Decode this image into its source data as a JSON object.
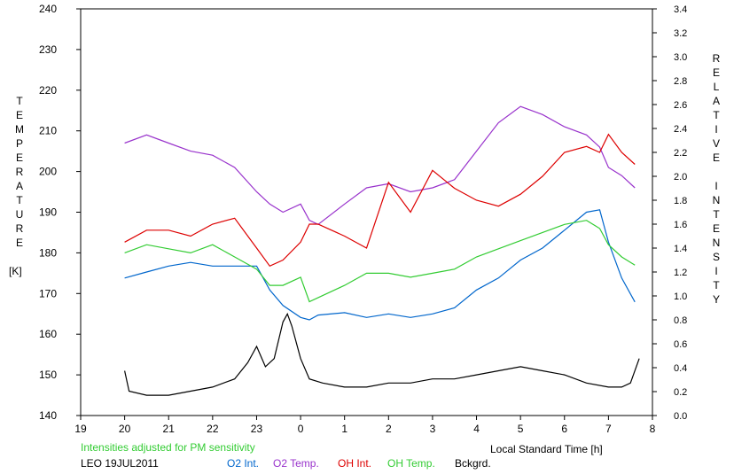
{
  "chart_data": {
    "type": "line",
    "title": "",
    "xlabel": "Local Standard Time [h]",
    "ylabel_left_letters": [
      "T",
      "E",
      "M",
      "P",
      "E",
      "R",
      "A",
      "T",
      "U",
      "R",
      "E"
    ],
    "ylabel_left_unit": "[K]",
    "ylabel_right_letters": [
      "R",
      "E",
      "L",
      "A",
      "T",
      "I",
      "V",
      "E",
      "",
      "I",
      "N",
      "T",
      "E",
      "N",
      "S",
      "I",
      "T",
      "Y"
    ],
    "x_ticks": [
      "19",
      "20",
      "21",
      "22",
      "23",
      "0",
      "1",
      "2",
      "3",
      "4",
      "5",
      "6",
      "7",
      "8"
    ],
    "x_range_hours_since_19": [
      0,
      13
    ],
    "y_left_ticks": [
      "140",
      "150",
      "160",
      "170",
      "180",
      "190",
      "200",
      "210",
      "220",
      "230",
      "240"
    ],
    "y_left_range": [
      140,
      240
    ],
    "y_right_ticks": [
      "0.0",
      "0.2",
      "0.4",
      "0.6",
      "0.8",
      "1.0",
      "1.2",
      "1.4",
      "1.6",
      "1.8",
      "2.0",
      "2.2",
      "2.4",
      "2.6",
      "2.8",
      "3.0",
      "3.2",
      "3.4"
    ],
    "y_right_range": [
      0,
      3.4
    ],
    "note": "Intensities adjusted for PM sensitivity",
    "station": "LEO 19JUL2011",
    "grid": false,
    "legend_position": "bottom",
    "series": [
      {
        "name": "O2 Int.",
        "axis": "right",
        "color": "#0066cc",
        "x": [
          20.0,
          20.5,
          21.0,
          21.5,
          22.0,
          22.5,
          23.0,
          23.3,
          23.6,
          24.0,
          24.2,
          24.4,
          25.0,
          25.5,
          26.0,
          26.5,
          27.0,
          27.5,
          28.0,
          28.5,
          29.0,
          29.5,
          30.0,
          30.5,
          30.8,
          31.0,
          31.3,
          31.6
        ],
        "values": [
          1.15,
          1.2,
          1.25,
          1.28,
          1.25,
          1.25,
          1.25,
          1.05,
          0.92,
          0.82,
          0.8,
          0.84,
          0.86,
          0.82,
          0.85,
          0.82,
          0.85,
          0.9,
          1.05,
          1.15,
          1.3,
          1.4,
          1.55,
          1.7,
          1.72,
          1.45,
          1.15,
          0.95
        ]
      },
      {
        "name": "O2 Temp.",
        "axis": "left",
        "color": "#9933cc",
        "x": [
          20.0,
          20.5,
          21.0,
          21.5,
          22.0,
          22.5,
          23.0,
          23.3,
          23.6,
          24.0,
          24.2,
          24.4,
          25.0,
          25.5,
          26.0,
          26.5,
          27.0,
          27.5,
          28.0,
          28.5,
          29.0,
          29.5,
          30.0,
          30.5,
          30.8,
          31.0,
          31.3,
          31.6
        ],
        "values": [
          207,
          209,
          207,
          205,
          204,
          201,
          195,
          192,
          190,
          192,
          188,
          187,
          192,
          196,
          197,
          195,
          196,
          198,
          205,
          212,
          216,
          214,
          211,
          209,
          206,
          201,
          199,
          196
        ]
      },
      {
        "name": "OH Int.",
        "axis": "right",
        "color": "#dd0000",
        "x": [
          20.0,
          20.5,
          21.0,
          21.5,
          22.0,
          22.5,
          23.0,
          23.3,
          23.6,
          24.0,
          24.2,
          24.4,
          25.0,
          25.5,
          26.0,
          26.5,
          27.0,
          27.5,
          28.0,
          28.5,
          29.0,
          29.5,
          30.0,
          30.5,
          30.8,
          31.0,
          31.3,
          31.6
        ],
        "values": [
          1.45,
          1.55,
          1.55,
          1.5,
          1.6,
          1.65,
          1.4,
          1.25,
          1.3,
          1.45,
          1.6,
          1.6,
          1.5,
          1.4,
          1.95,
          1.7,
          2.05,
          1.9,
          1.8,
          1.75,
          1.85,
          2.0,
          2.2,
          2.25,
          2.2,
          2.35,
          2.2,
          2.1
        ]
      },
      {
        "name": "OH Temp.",
        "axis": "left",
        "color": "#33cc33",
        "x": [
          20.0,
          20.5,
          21.0,
          21.5,
          22.0,
          22.5,
          23.0,
          23.3,
          23.6,
          24.0,
          24.2,
          24.4,
          25.0,
          25.5,
          26.0,
          26.5,
          27.0,
          27.5,
          28.0,
          28.5,
          29.0,
          29.5,
          30.0,
          30.5,
          30.8,
          31.0,
          31.3,
          31.6
        ],
        "values": [
          180,
          182,
          181,
          180,
          182,
          179,
          176,
          172,
          172,
          174,
          168,
          169,
          172,
          175,
          175,
          174,
          175,
          176,
          179,
          181,
          183,
          185,
          187,
          188,
          186,
          182,
          179,
          177
        ]
      },
      {
        "name": "Bckgrd.",
        "axis": "left",
        "color": "#000000",
        "x": [
          20.0,
          20.1,
          20.5,
          21.0,
          21.5,
          22.0,
          22.5,
          22.8,
          23.0,
          23.2,
          23.4,
          23.6,
          23.7,
          23.8,
          24.0,
          24.2,
          24.5,
          25.0,
          25.5,
          26.0,
          26.5,
          27.0,
          27.5,
          28.0,
          28.5,
          29.0,
          29.5,
          30.0,
          30.5,
          31.0,
          31.3,
          31.5,
          31.7
        ],
        "values": [
          151,
          146,
          145,
          145,
          146,
          147,
          149,
          153,
          157,
          152,
          154,
          163,
          165,
          162,
          154,
          149,
          148,
          147,
          147,
          148,
          148,
          149,
          149,
          150,
          151,
          152,
          151,
          150,
          148,
          147,
          147,
          148,
          154
        ]
      }
    ]
  }
}
